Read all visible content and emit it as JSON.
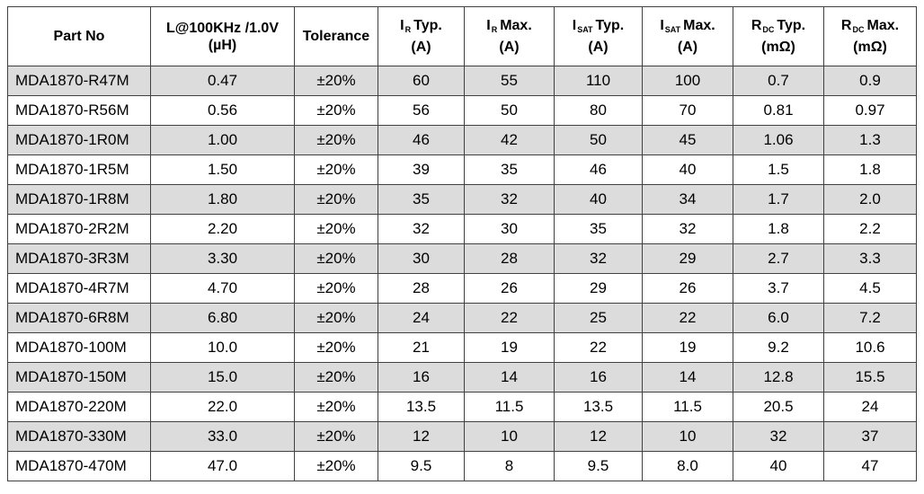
{
  "table": {
    "headers": [
      {
        "lines": [
          "Part No"
        ]
      },
      {
        "lines": [
          "L@100KHz /1.0V",
          "(µH)"
        ]
      },
      {
        "lines": [
          "Tolerance"
        ]
      },
      {
        "main": "I",
        "sub": "R",
        "suffix": "Typ.",
        "unit": "(A)"
      },
      {
        "main": "I",
        "sub": "R",
        "suffix": "Max.",
        "unit": "(A)"
      },
      {
        "main": "I",
        "sub": "SAT",
        "suffix": "Typ.",
        "unit": "(A)"
      },
      {
        "main": "I",
        "sub": "SAT",
        "suffix": "Max.",
        "unit": "(A)"
      },
      {
        "main": "R",
        "sub": "DC",
        "suffix": "Typ.",
        "unit": "(mΩ)"
      },
      {
        "main": "R",
        "sub": "DC",
        "suffix": "Max.",
        "unit": "(mΩ)"
      }
    ],
    "rows": [
      [
        "MDA1870-R47M",
        "0.47",
        "±20%",
        "60",
        "55",
        "110",
        "100",
        "0.7",
        "0.9"
      ],
      [
        "MDA1870-R56M",
        "0.56",
        "±20%",
        "56",
        "50",
        "80",
        "70",
        "0.81",
        "0.97"
      ],
      [
        "MDA1870-1R0M",
        "1.00",
        "±20%",
        "46",
        "42",
        "50",
        "45",
        "1.06",
        "1.3"
      ],
      [
        "MDA1870-1R5M",
        "1.50",
        "±20%",
        "39",
        "35",
        "46",
        "40",
        "1.5",
        "1.8"
      ],
      [
        "MDA1870-1R8M",
        "1.80",
        "±20%",
        "35",
        "32",
        "40",
        "34",
        "1.7",
        "2.0"
      ],
      [
        "MDA1870-2R2M",
        "2.20",
        "±20%",
        "32",
        "30",
        "35",
        "32",
        "1.8",
        "2.2"
      ],
      [
        "MDA1870-3R3M",
        "3.30",
        "±20%",
        "30",
        "28",
        "32",
        "29",
        "2.7",
        "3.3"
      ],
      [
        "MDA1870-4R7M",
        "4.70",
        "±20%",
        "28",
        "26",
        "29",
        "26",
        "3.7",
        "4.5"
      ],
      [
        "MDA1870-6R8M",
        "6.80",
        "±20%",
        "24",
        "22",
        "25",
        "22",
        "6.0",
        "7.2"
      ],
      [
        "MDA1870-100M",
        "10.0",
        "±20%",
        "21",
        "19",
        "22",
        "19",
        "9.2",
        "10.6"
      ],
      [
        "MDA1870-150M",
        "15.0",
        "±20%",
        "16",
        "14",
        "16",
        "14",
        "12.8",
        "15.5"
      ],
      [
        "MDA1870-220M",
        "22.0",
        "±20%",
        "13.5",
        "11.5",
        "13.5",
        "11.5",
        "20.5",
        "24"
      ],
      [
        "MDA1870-330M",
        "33.0",
        "±20%",
        "12",
        "10",
        "12",
        "10",
        "32",
        "37"
      ],
      [
        "MDA1870-470M",
        "47.0",
        "±20%",
        "9.5",
        "8",
        "9.5",
        "8.0",
        "40",
        "47"
      ]
    ]
  },
  "colors": {
    "shaded_row": "#dcdcdc",
    "border": "#404040"
  }
}
